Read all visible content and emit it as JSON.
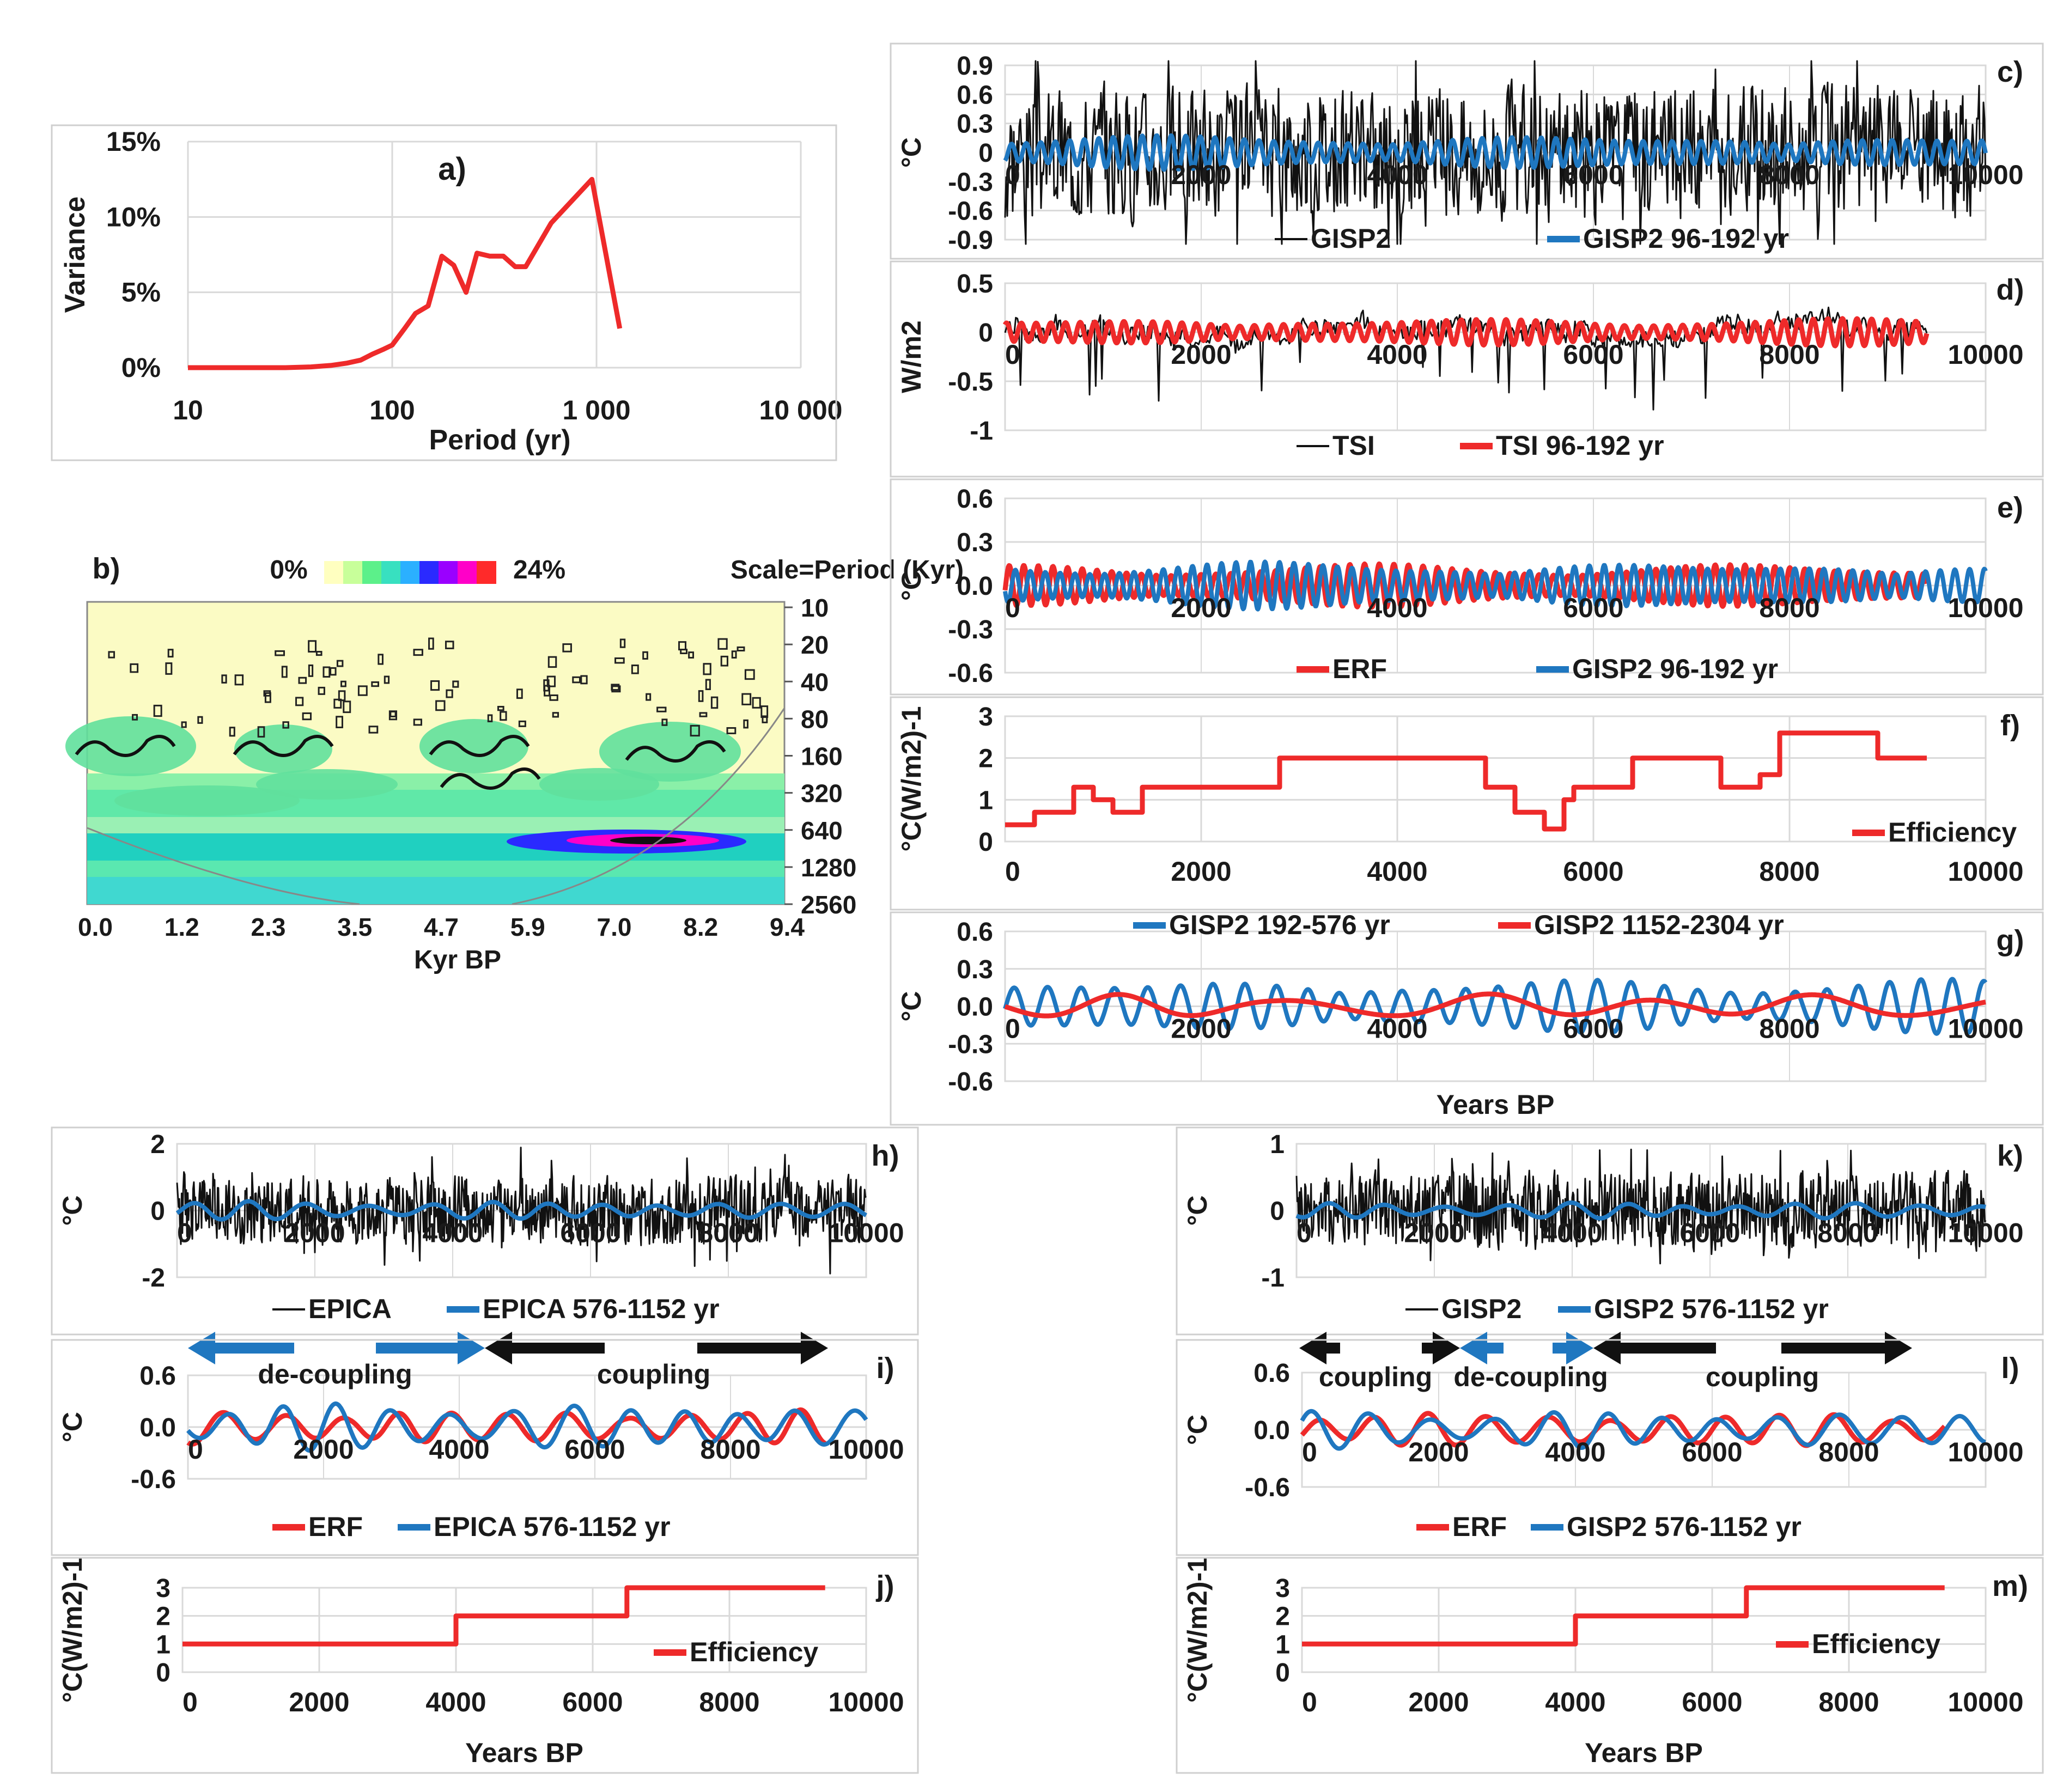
{
  "colors": {
    "red": "#ee2a2a",
    "blue": "#1f77c0",
    "black": "#111111",
    "grid": "#d9d9d9",
    "frame": "#cfcfcf"
  },
  "chart_data": [
    {
      "id": "a",
      "type": "line",
      "panel_label": "a)",
      "xlabel": "Period (yr)",
      "ylabel": "Variance",
      "xscale": "log",
      "xticks": [
        "10",
        "100",
        "1 000",
        "10 000"
      ],
      "yticks": [
        "0%",
        "5%",
        "10%",
        "15%"
      ],
      "series": [
        {
          "name": "Variance",
          "color": "red",
          "points": [
            [
              10,
              0
            ],
            [
              20,
              0
            ],
            [
              30,
              0
            ],
            [
              40,
              0.05
            ],
            [
              50,
              0.15
            ],
            [
              60,
              0.3
            ],
            [
              70,
              0.5
            ],
            [
              80,
              0.9
            ],
            [
              90,
              1.2
            ],
            [
              100,
              1.5
            ],
            [
              115,
              2.6
            ],
            [
              130,
              3.6
            ],
            [
              150,
              4.1
            ],
            [
              175,
              7.4
            ],
            [
              200,
              6.8
            ],
            [
              230,
              5.0
            ],
            [
              260,
              7.6
            ],
            [
              300,
              7.4
            ],
            [
              350,
              7.4
            ],
            [
              400,
              6.7
            ],
            [
              450,
              6.7
            ],
            [
              600,
              9.6
            ],
            [
              950,
              12.5
            ],
            [
              1300,
              2.6
            ]
          ]
        }
      ]
    },
    {
      "id": "b",
      "type": "heatmap",
      "panel_label": "b)",
      "scale_min": "0%",
      "scale_max": "24%",
      "scale_title": "Scale=Period (Kyr)",
      "xticks": [
        "0.0",
        "1.2",
        "2.3",
        "3.5",
        "4.7",
        "5.9",
        "7.0",
        "8.2",
        "9.4"
      ],
      "xlabel": "Kyr BP",
      "yticks": [
        "10",
        "20",
        "40",
        "80",
        "160",
        "320",
        "640",
        "1280",
        "2560"
      ]
    },
    {
      "id": "c",
      "type": "line",
      "panel_label": "c)",
      "ylabel": "°C",
      "ylim": [
        -0.9,
        0.9
      ],
      "yticks": [
        "0.9",
        "0.6",
        "0.3",
        "0",
        "-0.3",
        "-0.6",
        "-0.9"
      ],
      "xticks": [
        "0",
        "2000",
        "4000",
        "6000",
        "8000",
        "10000"
      ],
      "legend": [
        "GISP2",
        "GISP2 96-192 yr"
      ],
      "series": [
        {
          "name": "GISP2",
          "color": "black",
          "kind": "noise",
          "amp": 0.55,
          "n": 900,
          "seed": 3,
          "x": [
            0,
            10000
          ]
        },
        {
          "name": "GISP2 96-192 yr",
          "color": "blue",
          "kind": "osc",
          "amp": 0.18,
          "period": 150,
          "seed": 5,
          "x": [
            0,
            10000
          ]
        }
      ]
    },
    {
      "id": "d",
      "type": "line",
      "panel_label": "d)",
      "ylabel": "W/m2",
      "ylim": [
        -1,
        0.5
      ],
      "yticks": [
        "0.5",
        "0",
        "-0.5",
        "-1"
      ],
      "xticks": [
        "0",
        "2000",
        "4000",
        "6000",
        "8000",
        "10000"
      ],
      "legend": [
        "TSI",
        "TSI 96-192 yr"
      ],
      "series": [
        {
          "name": "TSI",
          "color": "black",
          "kind": "tsi",
          "amp": 0.22,
          "n": 600,
          "seed": 7,
          "x": [
            0,
            9400
          ]
        },
        {
          "name": "TSI 96-192 yr",
          "color": "red",
          "kind": "osc",
          "amp": 0.14,
          "period": 150,
          "seed": 9,
          "x": [
            0,
            9400
          ]
        }
      ]
    },
    {
      "id": "e",
      "type": "line",
      "panel_label": "e)",
      "ylabel": "°C",
      "ylim": [
        -0.6,
        0.6
      ],
      "yticks": [
        "0.6",
        "0.3",
        "0.0",
        "-0.3",
        "-0.6"
      ],
      "xticks": [
        "0",
        "2000",
        "4000",
        "6000",
        "8000",
        "10000"
      ],
      "legend": [
        "ERF",
        "GISP2 96-192 yr"
      ],
      "series": [
        {
          "name": "ERF",
          "color": "red",
          "kind": "osc",
          "amp": 0.15,
          "period": 150,
          "seed": 11,
          "x": [
            0,
            9400
          ]
        },
        {
          "name": "GISP2 96-192 yr",
          "color": "blue",
          "kind": "osc",
          "amp": 0.17,
          "period": 150,
          "seed": 13,
          "x": [
            0,
            10000
          ]
        }
      ]
    },
    {
      "id": "f",
      "type": "step",
      "panel_label": "f)",
      "ylabel": "°C(W/m2)-1",
      "ylim": [
        0,
        3
      ],
      "yticks": [
        "3",
        "2",
        "1",
        "0"
      ],
      "xticks": [
        "0",
        "2000",
        "4000",
        "6000",
        "8000",
        "10000"
      ],
      "legend": [
        "Efficiency"
      ],
      "series": [
        {
          "name": "Efficiency",
          "color": "red",
          "points": [
            [
              0,
              0.4
            ],
            [
              300,
              0.4
            ],
            [
              300,
              0.7
            ],
            [
              700,
              0.7
            ],
            [
              700,
              1.3
            ],
            [
              900,
              1.3
            ],
            [
              900,
              1.0
            ],
            [
              1100,
              1.0
            ],
            [
              1100,
              0.7
            ],
            [
              1400,
              0.7
            ],
            [
              1400,
              1.3
            ],
            [
              2800,
              1.3
            ],
            [
              2800,
              2.0
            ],
            [
              4900,
              2.0
            ],
            [
              4900,
              1.3
            ],
            [
              5200,
              1.3
            ],
            [
              5200,
              0.7
            ],
            [
              5500,
              0.7
            ],
            [
              5500,
              0.3
            ],
            [
              5700,
              0.3
            ],
            [
              5700,
              1.0
            ],
            [
              5800,
              1.0
            ],
            [
              5800,
              1.3
            ],
            [
              6400,
              1.3
            ],
            [
              6400,
              2.0
            ],
            [
              7300,
              2.0
            ],
            [
              7300,
              1.3
            ],
            [
              7700,
              1.3
            ],
            [
              7700,
              1.6
            ],
            [
              7900,
              1.6
            ],
            [
              7900,
              2.6
            ],
            [
              8900,
              2.6
            ],
            [
              8900,
              2.0
            ],
            [
              9400,
              2.0
            ]
          ]
        }
      ]
    },
    {
      "id": "g",
      "type": "line",
      "panel_label": "g)",
      "ylabel": "°C",
      "xlabel": "Years BP",
      "ylim": [
        -0.6,
        0.6
      ],
      "yticks": [
        "0.6",
        "0.3",
        "0.0",
        "-0.3",
        "-0.6"
      ],
      "xticks": [
        "0",
        "2000",
        "4000",
        "6000",
        "8000",
        "10000"
      ],
      "legend": [
        "GISP2 192-576 yr",
        "GISP2 1152-2304 yr"
      ],
      "series": [
        {
          "name": "GISP2 192-576 yr",
          "color": "blue",
          "kind": "osc",
          "amp": 0.22,
          "period": 330,
          "seed": 17,
          "x": [
            0,
            10000
          ]
        },
        {
          "name": "GISP2 1152-2304 yr",
          "color": "red",
          "kind": "slow",
          "amp": 0.1,
          "period": 1800,
          "seed": 19,
          "x": [
            0,
            10000
          ]
        }
      ]
    },
    {
      "id": "h",
      "type": "line",
      "panel_label": "h)",
      "ylabel": "°C",
      "ylim": [
        -2,
        2
      ],
      "yticks": [
        "2",
        "0",
        "-2"
      ],
      "xticks": [
        "0",
        "2000",
        "4000",
        "6000",
        "8000",
        "10000"
      ],
      "legend": [
        "EPICA",
        "EPICA 576-1152 yr"
      ],
      "series": [
        {
          "name": "EPICA",
          "color": "black",
          "kind": "noise",
          "amp": 0.8,
          "n": 900,
          "seed": 23,
          "x": [
            0,
            10000
          ]
        },
        {
          "name": "EPICA 576-1152 yr",
          "color": "blue",
          "kind": "osc",
          "amp": 0.28,
          "period": 850,
          "seed": 29,
          "x": [
            0,
            10000
          ]
        }
      ]
    },
    {
      "id": "i",
      "type": "line",
      "panel_label": "i)",
      "ylabel": "°C",
      "ylim": [
        -0.6,
        0.6
      ],
      "yticks": [
        "0.6",
        "0.0",
        "-0.6"
      ],
      "xticks": [
        "0",
        "2000",
        "4000",
        "6000",
        "8000",
        "10000"
      ],
      "legend": [
        "ERF",
        "EPICA 576-1152 yr"
      ],
      "annotations": [
        "de-coupling",
        "coupling"
      ],
      "series": [
        {
          "name": "ERF",
          "color": "red",
          "kind": "osc",
          "amp": 0.22,
          "period": 850,
          "seed": 31,
          "x": [
            0,
            9400
          ]
        },
        {
          "name": "EPICA 576-1152 yr",
          "color": "blue",
          "kind": "osc",
          "amp": 0.28,
          "period": 850,
          "seed": 37,
          "x": [
            0,
            10000
          ]
        }
      ]
    },
    {
      "id": "j",
      "type": "step",
      "panel_label": "j)",
      "ylabel": "°C(W/m2)-1",
      "xlabel": "Years BP",
      "ylim": [
        0,
        3
      ],
      "yticks": [
        "3",
        "2",
        "1",
        "0"
      ],
      "xticks": [
        "0",
        "2000",
        "4000",
        "6000",
        "8000",
        "10000"
      ],
      "legend": [
        "Efficiency"
      ],
      "series": [
        {
          "name": "Efficiency",
          "color": "red",
          "points": [
            [
              0,
              1
            ],
            [
              4000,
              1
            ],
            [
              4000,
              2
            ],
            [
              6500,
              2
            ],
            [
              6500,
              3
            ],
            [
              9400,
              3
            ]
          ]
        }
      ]
    },
    {
      "id": "k",
      "type": "line",
      "panel_label": "k)",
      "ylabel": "°C",
      "ylim": [
        -1,
        1
      ],
      "yticks": [
        "1",
        "0",
        "-1"
      ],
      "xticks": [
        "0",
        "2000",
        "4000",
        "6000",
        "8000",
        "10000"
      ],
      "legend": [
        "GISP2",
        "GISP2 576-1152 yr"
      ],
      "series": [
        {
          "name": "GISP2",
          "color": "black",
          "kind": "noise",
          "amp": 0.45,
          "n": 900,
          "seed": 41,
          "x": [
            0,
            10000
          ]
        },
        {
          "name": "GISP2 576-1152 yr",
          "color": "blue",
          "kind": "osc",
          "amp": 0.12,
          "period": 850,
          "seed": 43,
          "x": [
            0,
            10000
          ]
        }
      ]
    },
    {
      "id": "l",
      "type": "line",
      "panel_label": "l)",
      "ylabel": "°C",
      "ylim": [
        -0.6,
        0.6
      ],
      "yticks": [
        "0.6",
        "0.0",
        "-0.6"
      ],
      "xticks": [
        "0",
        "2000",
        "4000",
        "6000",
        "8000",
        "10000"
      ],
      "legend": [
        "ERF",
        "GISP2 576-1152 yr"
      ],
      "annotations": [
        "coupling",
        "de-coupling",
        "coupling"
      ],
      "series": [
        {
          "name": "ERF",
          "color": "red",
          "kind": "osc",
          "amp": 0.2,
          "period": 850,
          "seed": 47,
          "x": [
            0,
            9400
          ]
        },
        {
          "name": "GISP2 576-1152 yr",
          "color": "blue",
          "kind": "osc",
          "amp": 0.2,
          "period": 850,
          "seed": 53,
          "x": [
            0,
            10000
          ]
        }
      ]
    },
    {
      "id": "m",
      "type": "step",
      "panel_label": "m)",
      "ylabel": "°C(W/m2)-1",
      "xlabel": "Years BP",
      "ylim": [
        0,
        3
      ],
      "yticks": [
        "3",
        "2",
        "1",
        "0"
      ],
      "xticks": [
        "0",
        "2000",
        "4000",
        "6000",
        "8000",
        "10000"
      ],
      "legend": [
        "Efficiency"
      ],
      "series": [
        {
          "name": "Efficiency",
          "color": "red",
          "points": [
            [
              0,
              1
            ],
            [
              4000,
              1
            ],
            [
              4000,
              2
            ],
            [
              6500,
              2
            ],
            [
              6500,
              3
            ],
            [
              9400,
              3
            ]
          ]
        }
      ]
    }
  ]
}
